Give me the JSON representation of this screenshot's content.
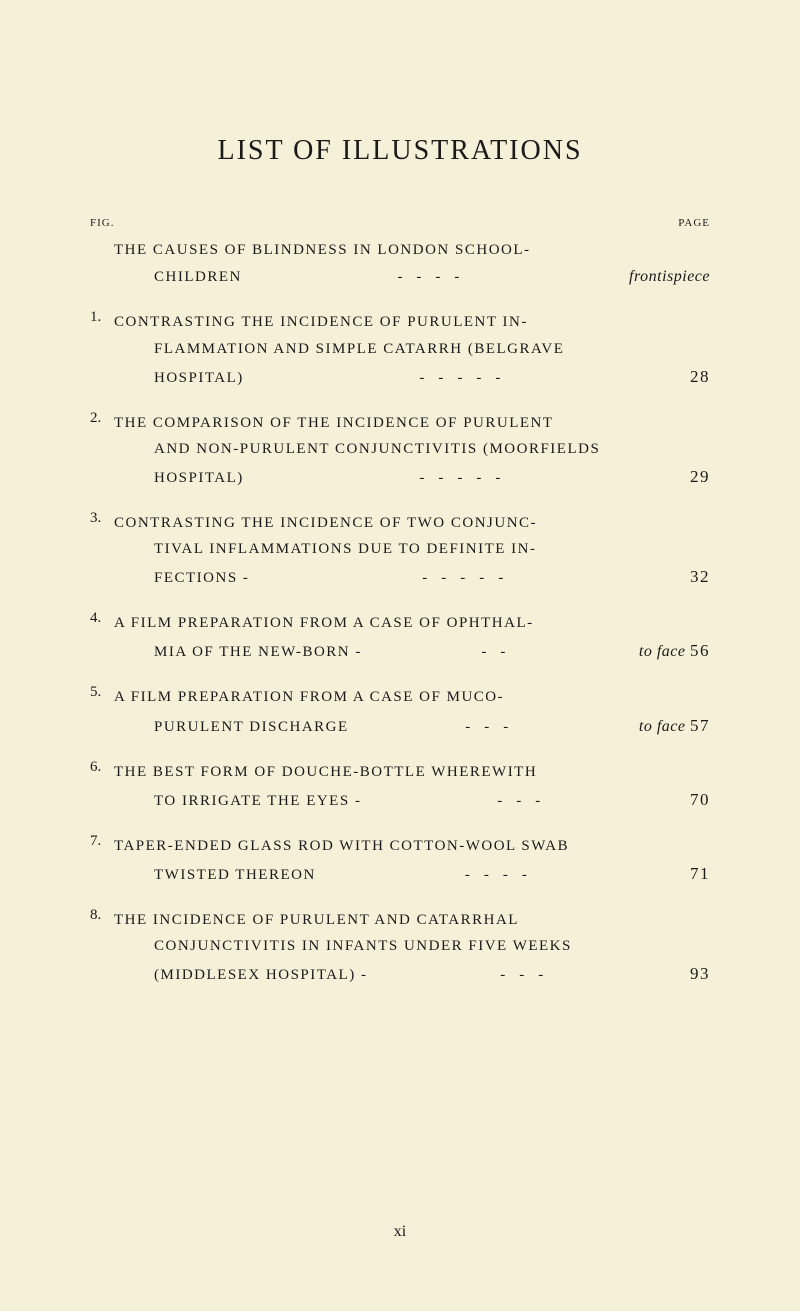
{
  "title": "LIST OF ILLUSTRATIONS",
  "headers": {
    "fig": "FIG.",
    "page": "PAGE"
  },
  "entries": [
    {
      "number": "",
      "lines": [
        "THE CAUSES OF BLINDNESS IN LONDON SCHOOL-"
      ],
      "lastLineText": "CHILDREN",
      "lastLineIndent": true,
      "dashes": "----",
      "page": "frontispiece",
      "pageItalic": true
    },
    {
      "number": "1.",
      "lines": [
        "CONTRASTING THE INCIDENCE OF PURULENT IN-",
        "FLAMMATION AND SIMPLE CATARRH (BELGRAVE"
      ],
      "lastLineText": "HOSPITAL)",
      "lastLineIndent": true,
      "dashes": "-----",
      "page": "28"
    },
    {
      "number": "2.",
      "lines": [
        "THE COMPARISON OF THE INCIDENCE OF PURULENT",
        "AND NON-PURULENT CONJUNCTIVITIS (MOORFIELDS"
      ],
      "lastLineText": "HOSPITAL)",
      "lastLineIndent": true,
      "dashes": "-----",
      "page": "29"
    },
    {
      "number": "3.",
      "lines": [
        "CONTRASTING THE INCIDENCE OF TWO CONJUNC-",
        "TIVAL INFLAMMATIONS DUE TO DEFINITE IN-"
      ],
      "lastLineText": "FECTIONS -",
      "lastLineIndent": true,
      "dashes": "-----",
      "page": "32"
    },
    {
      "number": "4.",
      "lines": [
        "A FILM PREPARATION FROM A CASE OF OPHTHAL-"
      ],
      "lastLineText": "MIA OF THE NEW-BORN -",
      "lastLineIndent": true,
      "dashes": "--",
      "page": "to face 56",
      "pageItalicPartial": "to face",
      "pageNumber": "56"
    },
    {
      "number": "5.",
      "lines": [
        "A FILM PREPARATION FROM A CASE OF MUCO-"
      ],
      "lastLineText": "PURULENT DISCHARGE",
      "lastLineIndent": true,
      "dashes": "---",
      "page": "to face 57",
      "pageItalicPartial": "to face",
      "pageNumber": "57"
    },
    {
      "number": "6.",
      "lines": [
        "THE BEST FORM OF DOUCHE-BOTTLE WHEREWITH"
      ],
      "lastLineText": "TO IRRIGATE THE EYES -",
      "lastLineIndent": true,
      "dashes": "---",
      "page": "70"
    },
    {
      "number": "7.",
      "lines": [
        "TAPER-ENDED GLASS ROD WITH COTTON-WOOL SWAB"
      ],
      "lastLineText": "TWISTED THEREON",
      "lastLineIndent": true,
      "dashes": "----",
      "page": "71"
    },
    {
      "number": "8.",
      "lines": [
        "THE INCIDENCE OF PURULENT AND CATARRHAL",
        "CONJUNCTIVITIS IN INFANTS UNDER FIVE WEEKS"
      ],
      "lastLineText": "(MIDDLESEX HOSPITAL) -",
      "lastLineIndent": true,
      "dashes": "---",
      "page": "93"
    }
  ],
  "pageNumber": "xi",
  "colors": {
    "background": "#f5f0d8",
    "text": "#1a1a1a"
  },
  "typography": {
    "title_fontsize": 28,
    "body_fontsize": 15,
    "header_fontsize": 11,
    "page_fontsize": 17,
    "font_family": "Georgia, Times New Roman, serif"
  }
}
